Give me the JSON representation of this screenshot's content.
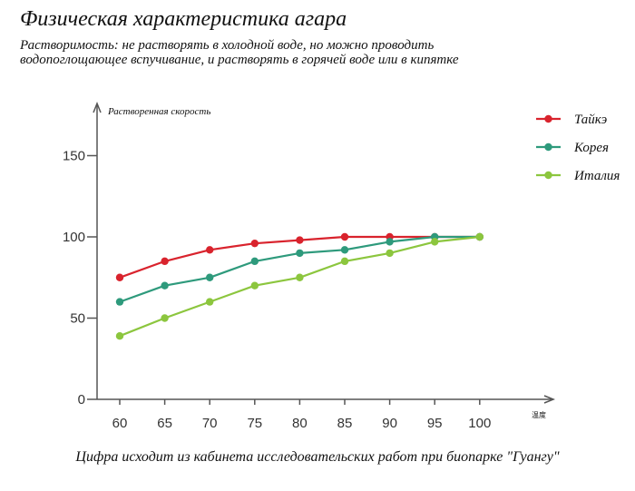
{
  "title": "Физическая характеристика агара",
  "subtitle": [
    "Растворимость: не растворять в холодной воде, но можно проводить",
    "водопоглощающее вспучивание, и растворять в горячей воде или в кипятке"
  ],
  "footer": "Цифра исходит из кабинета исследовательских работ при биопарке \"Гуангу\"",
  "chart_data": {
    "type": "line",
    "title": "",
    "xlabel": "温度",
    "ylabel": "Растворенная скорость",
    "x": [
      60,
      65,
      70,
      75,
      80,
      85,
      90,
      95,
      100
    ],
    "x_tick_labels": [
      "60",
      "65",
      "70",
      "75",
      "80",
      "85",
      "90",
      "95",
      "100"
    ],
    "y_ticks": [
      0,
      50,
      100,
      150
    ],
    "y_tick_labels": [
      "0",
      "50",
      "100",
      "150"
    ],
    "ylim": [
      0,
      180
    ],
    "grid": false,
    "legend_position": "top-right",
    "series": [
      {
        "name": "Тайкэ",
        "color": "#d9232d",
        "values": [
          75,
          85,
          92,
          96,
          98,
          100,
          100,
          100,
          100
        ]
      },
      {
        "name": "Корея",
        "color": "#2e9a7c",
        "values": [
          60,
          70,
          75,
          85,
          90,
          92,
          97,
          100,
          100
        ]
      },
      {
        "name": "Италия",
        "color": "#8cc63e",
        "values": [
          39,
          50,
          60,
          70,
          75,
          85,
          90,
          97,
          100
        ]
      }
    ]
  }
}
